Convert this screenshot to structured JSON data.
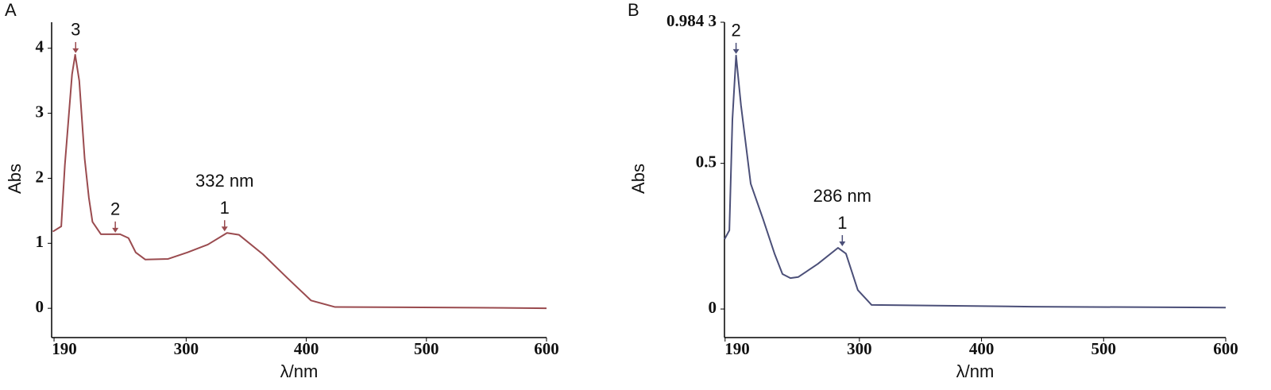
{
  "chart_data": [
    {
      "type": "line",
      "panel": "A",
      "x_label": "λ/nm",
      "y_label": "Abs",
      "x": [
        189,
        196,
        199,
        202,
        205,
        207.6,
        211,
        215.5,
        219,
        222,
        229,
        245,
        252,
        258,
        266,
        285,
        301,
        318,
        334,
        344,
        364,
        384,
        404,
        424,
        543,
        600
      ],
      "series": [
        {
          "color": "#9a4b4f",
          "values": [
            1.18,
            1.26,
            2.2,
            2.9,
            3.6,
            3.9,
            3.5,
            2.3,
            1.7,
            1.33,
            1.14,
            1.14,
            1.08,
            0.86,
            0.75,
            0.76,
            0.86,
            0.98,
            1.16,
            1.13,
            0.83,
            0.47,
            0.12,
            0.02,
            0.01,
            0.0
          ]
        }
      ],
      "xlim": [
        188,
        600
      ],
      "xticks": [
        190,
        300,
        400,
        500,
        600
      ],
      "ylim": [
        -0.45,
        4.4
      ],
      "yticks": [
        0,
        1,
        2,
        3,
        4
      ],
      "annotations": [
        {
          "labels": [
            "3"
          ],
          "x": 208,
          "y": 3.9
        },
        {
          "labels": [
            "2"
          ],
          "x": 241,
          "y": 1.14
        },
        {
          "labels": [
            "332 nm",
            "1"
          ],
          "x": 332,
          "y": 1.16
        }
      ]
    },
    {
      "type": "line",
      "panel": "B",
      "x_label": "λ/nm",
      "y_label": "Abs",
      "x": [
        189.6,
        193.5,
        196,
        199,
        203,
        211,
        221,
        230.5,
        237,
        243.5,
        250,
        266,
        282.5,
        289,
        298.7,
        310,
        441.5,
        600
      ],
      "series": [
        {
          "color": "#4b4f78",
          "values": [
            0.24,
            0.27,
            0.65,
            0.87,
            0.7,
            0.43,
            0.31,
            0.19,
            0.12,
            0.106,
            0.11,
            0.155,
            0.21,
            0.19,
            0.065,
            0.014,
            0.008,
            0.005
          ]
        }
      ],
      "xlim": [
        189.5,
        600
      ],
      "xticks": [
        190,
        300,
        400,
        500,
        600
      ],
      "ylim": [
        -0.098,
        0.9843
      ],
      "yticks": [
        0,
        0.5,
        {
          "value": 0.9843,
          "label": "0.984 3"
        }
      ],
      "annotations": [
        {
          "labels": [
            "2"
          ],
          "x": 199,
          "y": 0.87
        },
        {
          "labels": [
            "286 nm",
            "1"
          ],
          "x": 286,
          "y": 0.21
        }
      ]
    }
  ]
}
